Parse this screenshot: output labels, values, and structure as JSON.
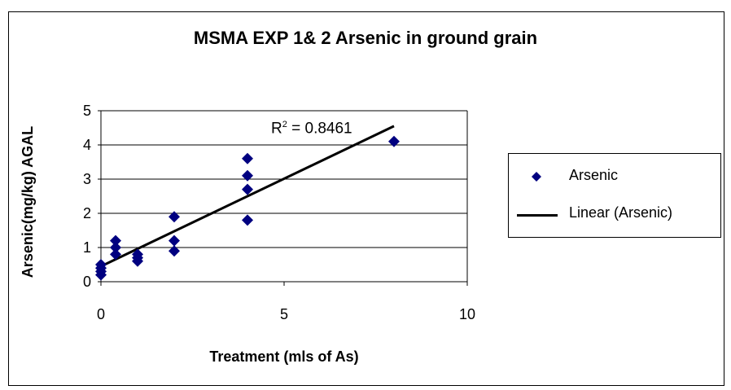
{
  "chart_data": {
    "type": "scatter",
    "title": "MSMA EXP 1& 2 Arsenic in ground grain",
    "xlabel": "Treatment (mls of As)",
    "ylabel": "Arsenic(mg/kg) AGAL",
    "xlim": [
      0,
      10
    ],
    "ylim": [
      0,
      5
    ],
    "x_ticks": [
      "0",
      "5",
      "10"
    ],
    "y_ticks": [
      "0",
      "1",
      "2",
      "3",
      "4",
      "5"
    ],
    "grid": "horizontal",
    "series": [
      {
        "name": "Arsenic",
        "marker": "diamond",
        "color": "#000080",
        "points": [
          {
            "x": 0,
            "y": 0.2
          },
          {
            "x": 0,
            "y": 0.3
          },
          {
            "x": 0,
            "y": 0.4
          },
          {
            "x": 0,
            "y": 0.5
          },
          {
            "x": 0.4,
            "y": 0.8
          },
          {
            "x": 0.4,
            "y": 1.0
          },
          {
            "x": 0.4,
            "y": 1.2
          },
          {
            "x": 1,
            "y": 0.6
          },
          {
            "x": 1,
            "y": 0.7
          },
          {
            "x": 1,
            "y": 0.8
          },
          {
            "x": 2,
            "y": 0.9
          },
          {
            "x": 2,
            "y": 1.2
          },
          {
            "x": 2,
            "y": 1.9
          },
          {
            "x": 4,
            "y": 1.8
          },
          {
            "x": 4,
            "y": 2.7
          },
          {
            "x": 4,
            "y": 3.1
          },
          {
            "x": 4,
            "y": 3.6
          },
          {
            "x": 8,
            "y": 4.1
          }
        ]
      },
      {
        "name": "Linear (Arsenic)",
        "type": "line",
        "color": "#000000",
        "points": [
          {
            "x": 0,
            "y": 0.45
          },
          {
            "x": 8,
            "y": 4.55
          }
        ]
      }
    ],
    "annotations": {
      "r2_prefix": "R",
      "r2_sup": "2",
      "r2_value": " = 0.8461"
    },
    "legend": {
      "position": "right",
      "items": [
        "Arsenic",
        "Linear (Arsenic)"
      ]
    }
  }
}
